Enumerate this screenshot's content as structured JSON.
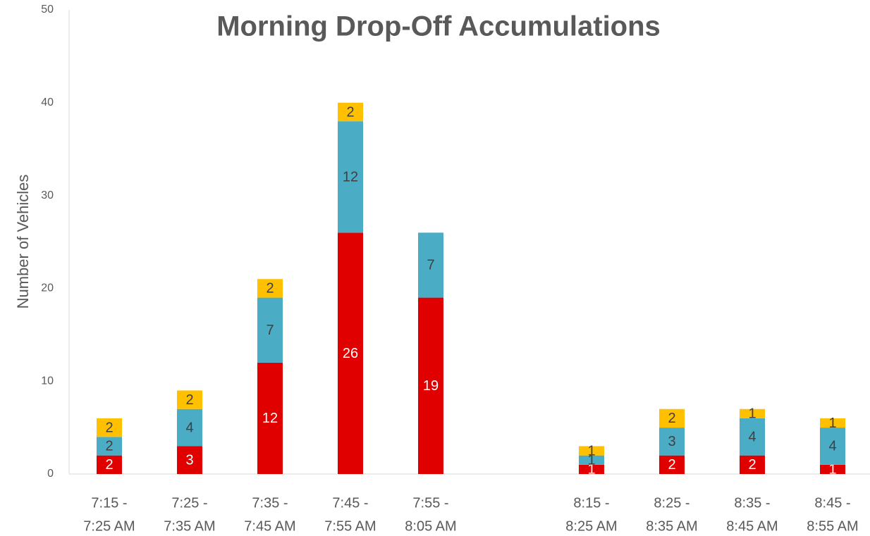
{
  "chart_data": {
    "type": "stacked_bar",
    "title": "Morning Drop-Off Accumulations",
    "y_label": "Number of Vehicles",
    "categories": [
      [
        "7:15 -",
        "7:25 AM"
      ],
      [
        "7:25 -",
        "7:35 AM"
      ],
      [
        "7:35 -",
        "7:45 AM"
      ],
      [
        "7:45 -",
        "7:55 AM"
      ],
      [
        "7:55 -",
        "8:05 AM"
      ],
      null,
      [
        "8:15 -",
        "8:25 AM"
      ],
      [
        "8:25 -",
        "8:35 AM"
      ],
      [
        "8:35 -",
        "8:45 AM"
      ],
      [
        "8:45 -",
        "8:55 AM"
      ]
    ],
    "series": [
      {
        "color": "#e00000",
        "label_color": "#ffffff",
        "values": [
          2,
          3,
          12,
          26,
          19,
          null,
          1,
          2,
          2,
          1
        ]
      },
      {
        "color": "#4bacc6",
        "label_color": "#404040",
        "values": [
          2,
          4,
          7,
          12,
          7,
          null,
          1,
          3,
          4,
          4
        ]
      },
      {
        "color": "#ffc000",
        "label_color": "#404040",
        "values": [
          2,
          2,
          2,
          2,
          null,
          null,
          1,
          2,
          1,
          1
        ]
      }
    ],
    "ylim": [
      0,
      50
    ],
    "yticks": [
      0,
      10,
      20,
      30,
      40,
      50
    ],
    "grid": false
  }
}
